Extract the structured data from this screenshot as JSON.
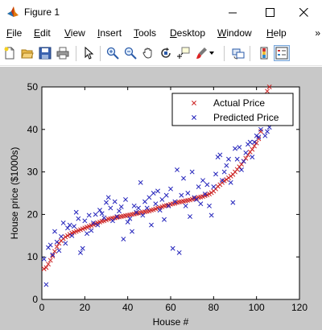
{
  "window": {
    "title": "Figure 1",
    "icon": "matlab-figure-icon",
    "controls": [
      "minimize-icon",
      "maximize-icon",
      "close-icon"
    ]
  },
  "menubar": {
    "items": [
      {
        "pre": "",
        "key": "F",
        "post": "ile"
      },
      {
        "pre": "",
        "key": "E",
        "post": "dit"
      },
      {
        "pre": "",
        "key": "V",
        "post": "iew"
      },
      {
        "pre": "",
        "key": "I",
        "post": "nsert"
      },
      {
        "pre": "",
        "key": "T",
        "post": "ools"
      },
      {
        "pre": "",
        "key": "D",
        "post": "esktop"
      },
      {
        "pre": "",
        "key": "W",
        "post": "indow"
      },
      {
        "pre": "",
        "key": "H",
        "post": "elp"
      }
    ],
    "overflow": "»"
  },
  "toolbar": {
    "buttons": [
      "new-figure-icon",
      "open-file-icon",
      "save-icon",
      "print-icon",
      "edit-plot-arrow-icon",
      "zoom-in-icon",
      "zoom-out-icon",
      "pan-hand-icon",
      "rotate-3d-icon",
      "data-cursor-icon",
      "brush-icon",
      "link-plot-icon",
      "colorbar-icon",
      "legend-icon"
    ]
  },
  "chart_data": {
    "type": "scatter",
    "xlabel": "House #",
    "ylabel": "House price ($1000s)",
    "xlim": [
      0,
      120
    ],
    "ylim": [
      0,
      50
    ],
    "xticks": [
      0,
      20,
      40,
      60,
      80,
      100,
      120
    ],
    "yticks": [
      0,
      10,
      20,
      30,
      40,
      50
    ],
    "legend_position": "top-right",
    "grid": false,
    "series": [
      {
        "name": "Actual Price",
        "color": "#cc2222",
        "marker": "x",
        "x": [
          1,
          2,
          3,
          4,
          5,
          6,
          7,
          8,
          9,
          10,
          11,
          12,
          13,
          14,
          15,
          16,
          17,
          18,
          19,
          20,
          21,
          22,
          23,
          24,
          25,
          26,
          27,
          28,
          29,
          30,
          31,
          32,
          33,
          34,
          35,
          36,
          37,
          38,
          39,
          40,
          41,
          42,
          43,
          44,
          45,
          46,
          47,
          48,
          49,
          50,
          51,
          52,
          53,
          54,
          55,
          56,
          57,
          58,
          59,
          60,
          61,
          62,
          63,
          64,
          65,
          66,
          67,
          68,
          69,
          70,
          71,
          72,
          73,
          74,
          75,
          76,
          77,
          78,
          79,
          80,
          81,
          82,
          83,
          84,
          85,
          86,
          87,
          88,
          89,
          90,
          91,
          92,
          93,
          94,
          95,
          96,
          97,
          98,
          99,
          100,
          101,
          102,
          103,
          104,
          105,
          106
        ],
        "y": [
          7.2,
          7.5,
          8.3,
          9.2,
          10.2,
          11.3,
          12.4,
          13.2,
          13.8,
          14.3,
          14.7,
          15.0,
          15.3,
          15.6,
          15.8,
          16.0,
          16.2,
          16.4,
          16.6,
          16.8,
          17.0,
          17.2,
          17.4,
          17.6,
          17.8,
          18.0,
          18.2,
          18.4,
          18.5,
          18.7,
          18.9,
          19.0,
          19.1,
          19.2,
          19.3,
          19.4,
          19.5,
          19.6,
          19.7,
          19.8,
          19.9,
          20.0,
          20.1,
          20.2,
          20.3,
          20.4,
          20.5,
          20.6,
          20.7,
          20.8,
          21.0,
          21.1,
          21.3,
          21.5,
          21.6,
          21.8,
          22.0,
          22.1,
          22.2,
          22.4,
          22.5,
          22.6,
          22.8,
          22.9,
          23.0,
          23.1,
          23.2,
          23.3,
          23.4,
          23.6,
          23.7,
          23.8,
          24.0,
          24.1,
          24.2,
          24.4,
          24.6,
          24.8,
          25.1,
          25.5,
          26.0,
          26.6,
          27.0,
          27.5,
          27.9,
          28.2,
          28.6,
          29.0,
          29.4,
          30.0,
          30.6,
          31.2,
          31.8,
          32.5,
          33.2,
          34.0,
          34.7,
          35.3,
          36.1,
          36.8,
          37.8,
          39.5,
          42.0,
          45.0,
          49.0,
          50.0
        ]
      },
      {
        "name": "Predicted Price",
        "color": "#2222bb",
        "marker": "x",
        "x": [
          1,
          2,
          3,
          4,
          5,
          6,
          7,
          8,
          9,
          10,
          11,
          12,
          13,
          14,
          15,
          16,
          17,
          18,
          19,
          20,
          21,
          22,
          23,
          24,
          25,
          26,
          27,
          28,
          29,
          30,
          31,
          32,
          33,
          34,
          35,
          36,
          37,
          38,
          39,
          40,
          41,
          42,
          43,
          44,
          45,
          46,
          47,
          48,
          49,
          50,
          51,
          52,
          53,
          54,
          55,
          56,
          57,
          58,
          59,
          60,
          61,
          62,
          63,
          64,
          65,
          66,
          67,
          68,
          69,
          70,
          71,
          72,
          73,
          74,
          75,
          76,
          77,
          78,
          79,
          80,
          81,
          82,
          83,
          84,
          85,
          86,
          87,
          88,
          89,
          90,
          91,
          92,
          93,
          94,
          95,
          96,
          97,
          98,
          99,
          100,
          101,
          102,
          103,
          104,
          105,
          106
        ],
        "y": [
          9.5,
          3.5,
          12.2,
          12.8,
          10.5,
          16.0,
          13.5,
          11.5,
          14.8,
          18.0,
          13.2,
          16.8,
          17.5,
          15.0,
          17.2,
          20.5,
          19.0,
          11.0,
          12.0,
          18.5,
          15.5,
          19.8,
          16.2,
          18.0,
          20.0,
          17.5,
          21.0,
          20.2,
          19.2,
          22.8,
          24.0,
          21.5,
          18.5,
          23.0,
          19.5,
          20.8,
          21.8,
          14.2,
          23.5,
          18.2,
          19.0,
          16.0,
          22.0,
          20.5,
          21.5,
          27.5,
          19.8,
          23.0,
          21.5,
          24.0,
          17.5,
          25.0,
          22.5,
          25.5,
          21.0,
          23.5,
          18.8,
          24.5,
          22.0,
          26.0,
          12.0,
          23.0,
          30.5,
          11.0,
          24.5,
          28.5,
          22.0,
          25.0,
          19.5,
          30.0,
          24.0,
          23.5,
          26.5,
          22.5,
          28.0,
          24.8,
          27.0,
          22.0,
          19.8,
          26.5,
          29.5,
          33.5,
          34.0,
          28.0,
          30.0,
          31.5,
          33.0,
          27.5,
          22.8,
          35.5,
          33.0,
          35.8,
          30.5,
          32.5,
          34.5,
          36.5,
          37.0,
          33.5,
          37.0,
          38.5,
          38.2,
          40.0,
          41.5,
          38.5,
          39.5,
          40.5
        ]
      }
    ]
  }
}
